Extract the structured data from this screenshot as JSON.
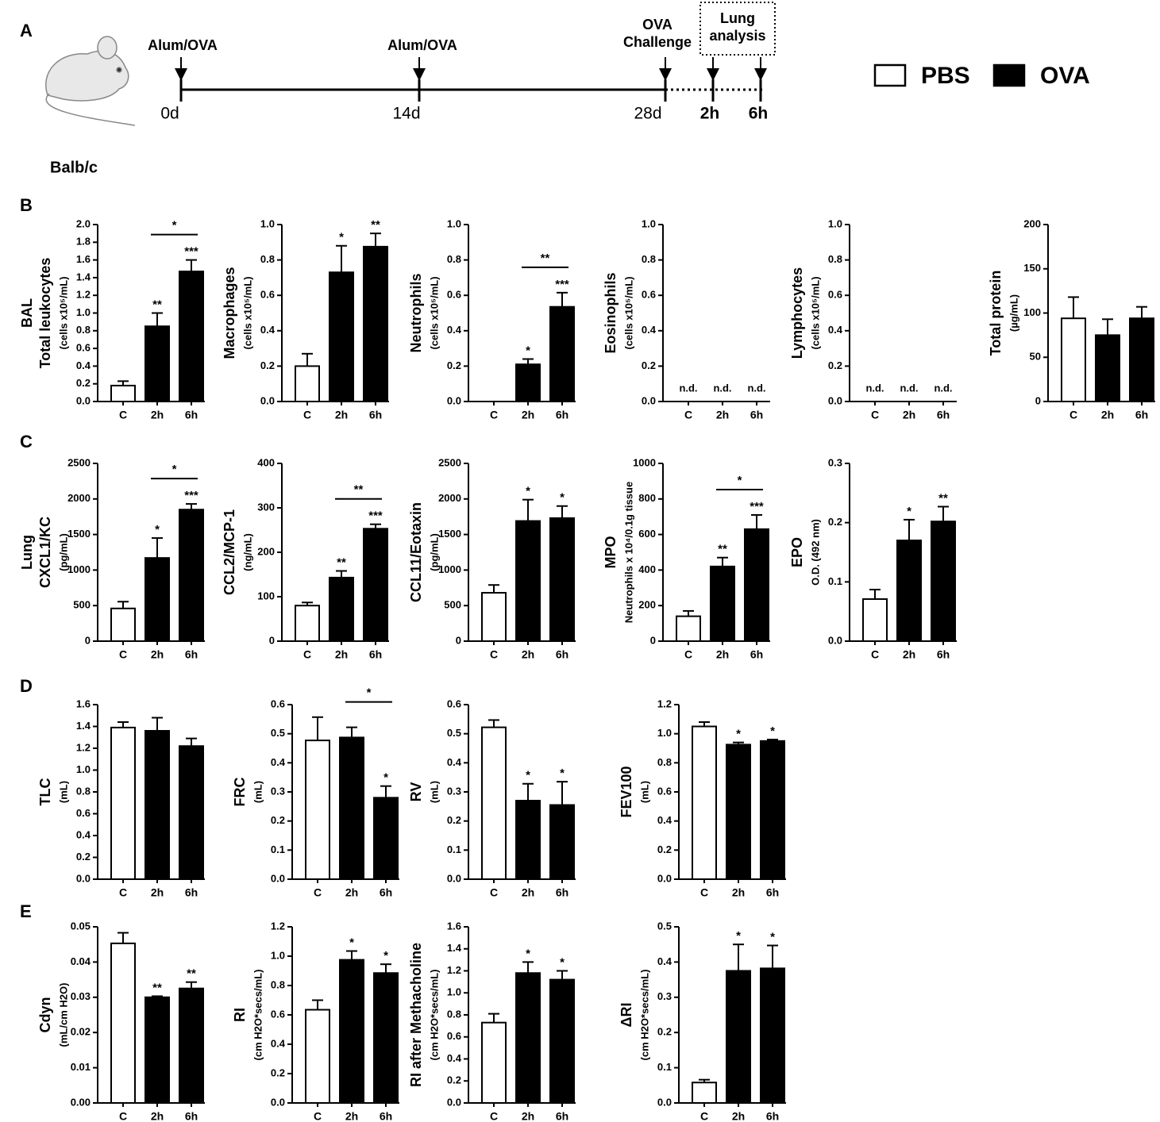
{
  "panel_labels": [
    "A",
    "B",
    "C",
    "D",
    "E"
  ],
  "timeline": {
    "strain": "Balb/c",
    "sensitization": [
      "Alum/OVA",
      "Alum/OVA"
    ],
    "challenge": [
      "OVA",
      "Challenge"
    ],
    "analysis": [
      "Lung",
      "analysis"
    ],
    "days": [
      "0d",
      "14d",
      "28d"
    ],
    "hours": [
      "2h",
      "6h"
    ]
  },
  "legend": [
    {
      "name": "PBS",
      "color": "#ffffff"
    },
    {
      "name": "OVA",
      "color": "#000000"
    }
  ],
  "chart_data": [
    {
      "type": "bar",
      "ylabel": [
        "BAL",
        "Total leukocytes",
        "(cells x10⁵/mL)"
      ],
      "categories": [
        "C",
        "2h",
        "6h"
      ],
      "values": [
        0.18,
        0.85,
        1.47
      ],
      "errors": [
        0.05,
        0.15,
        0.13
      ],
      "colors": [
        "#ffffff",
        "#000000",
        "#000000"
      ],
      "stars": [
        null,
        "**",
        "***"
      ],
      "brackets": [
        {
          "from": "2h",
          "to": "6h",
          "text": "*"
        }
      ],
      "ylim": [
        0,
        2
      ],
      "yticks": [
        {
          "value": 0,
          "label": "0.0"
        },
        0.2,
        0.4,
        0.6,
        0.8,
        {
          "value": 1,
          "label": "1.0"
        },
        1.2,
        1.4,
        1.6,
        1.8,
        {
          "value": 2,
          "label": "2.0"
        }
      ]
    },
    {
      "type": "bar",
      "ylabel": [
        "Macrophages",
        "(cells x10⁵/mL)"
      ],
      "categories": [
        "C",
        "2h",
        "6h"
      ],
      "values": [
        0.2,
        0.73,
        0.875
      ],
      "errors": [
        0.07,
        0.15,
        0.075
      ],
      "colors": [
        "#ffffff",
        "#000000",
        "#000000"
      ],
      "stars": [
        null,
        "*",
        "**"
      ],
      "ylim": [
        0,
        1
      ],
      "yticks": [
        {
          "value": 0,
          "label": "0.0"
        },
        0.2,
        0.4,
        0.6,
        0.8,
        {
          "value": 1,
          "label": "1.0"
        }
      ]
    },
    {
      "type": "bar",
      "ylabel": [
        "Neutrophils",
        "(cells x10⁵/mL)"
      ],
      "categories": [
        "C",
        "2h",
        "6h"
      ],
      "values": [
        0,
        0.21,
        0.535
      ],
      "errors": [
        null,
        0.03,
        0.08
      ],
      "colors": [
        "#ffffff",
        "#000000",
        "#000000"
      ],
      "stars": [
        null,
        "*",
        "***"
      ],
      "brackets": [
        {
          "from": "2h",
          "to": "6h",
          "text": "**"
        }
      ],
      "ylim": [
        0,
        1
      ],
      "yticks": [
        {
          "value": 0,
          "label": "0.0"
        },
        0.2,
        0.4,
        0.6,
        0.8,
        {
          "value": 1,
          "label": "1.0"
        }
      ]
    },
    {
      "type": "bar",
      "ylabel": [
        "Eosinophils",
        "(cells x10⁵/mL)"
      ],
      "categories": [
        "C",
        "2h",
        "6h"
      ],
      "values": [
        null,
        null,
        null
      ],
      "labels": [
        "n.d.",
        "n.d.",
        "n.d."
      ],
      "ylim": [
        0,
        1
      ],
      "yticks": [
        {
          "value": 0,
          "label": "0.0"
        },
        0.2,
        0.4,
        0.6,
        0.8,
        {
          "value": 1,
          "label": "1.0"
        }
      ]
    },
    {
      "type": "bar",
      "ylabel": [
        "Lymphocytes",
        "(cells x10⁵/mL)"
      ],
      "categories": [
        "C",
        "2h",
        "6h"
      ],
      "values": [
        null,
        null,
        null
      ],
      "labels": [
        "n.d.",
        "n.d.",
        "n.d."
      ],
      "ylim": [
        0,
        1
      ],
      "yticks": [
        {
          "value": 0,
          "label": "0.0"
        },
        0.2,
        0.4,
        0.6,
        0.8,
        {
          "value": 1,
          "label": "1.0"
        }
      ]
    },
    {
      "type": "bar",
      "ylabel": [
        "Total protein",
        "(µg/mL)"
      ],
      "categories": [
        "C",
        "2h",
        "6h"
      ],
      "values": [
        94,
        75,
        94
      ],
      "errors": [
        24,
        18,
        13
      ],
      "colors": [
        "#ffffff",
        "#000000",
        "#000000"
      ],
      "ylim": [
        0,
        200
      ],
      "yticks": [
        0,
        50,
        100,
        150,
        200
      ]
    },
    {
      "type": "bar",
      "ylabel": [
        "Lung",
        "CXCL1/KC",
        "(pg/mL)"
      ],
      "categories": [
        "C",
        "2h",
        "6h"
      ],
      "values": [
        460,
        1170,
        1850
      ],
      "errors": [
        95,
        280,
        80
      ],
      "colors": [
        "#ffffff",
        "#000000",
        "#000000"
      ],
      "stars": [
        null,
        "*",
        "***"
      ],
      "brackets": [
        {
          "from": "2h",
          "to": "6h",
          "text": "*"
        }
      ],
      "ylim": [
        0,
        2500
      ],
      "yticks": [
        0,
        500,
        1000,
        1500,
        2000,
        2500
      ]
    },
    {
      "type": "bar",
      "ylabel": [
        "CCL2/MCP-1",
        "(ng/mL)"
      ],
      "categories": [
        "C",
        "2h",
        "6h"
      ],
      "values": [
        80,
        143,
        253
      ],
      "errors": [
        7,
        15,
        10
      ],
      "colors": [
        "#ffffff",
        "#000000",
        "#000000"
      ],
      "stars": [
        null,
        "**",
        "***"
      ],
      "brackets": [
        {
          "from": "2h",
          "to": "6h",
          "text": "**"
        }
      ],
      "ylim": [
        0,
        400
      ],
      "yticks": [
        0,
        100,
        200,
        300,
        400
      ]
    },
    {
      "type": "bar",
      "ylabel": [
        "CCL11/Eotaxin",
        "(pg/mL)"
      ],
      "categories": [
        "C",
        "2h",
        "6h"
      ],
      "values": [
        680,
        1690,
        1730
      ],
      "errors": [
        110,
        300,
        170
      ],
      "colors": [
        "#ffffff",
        "#000000",
        "#000000"
      ],
      "stars": [
        null,
        "*",
        "*"
      ],
      "ylim": [
        0,
        2500
      ],
      "yticks": [
        0,
        500,
        1000,
        1500,
        2000,
        2500
      ]
    },
    {
      "type": "bar",
      "ylabel": [
        "MPO",
        "Neutrophils x 10⁴/0.1g tissue"
      ],
      "categories": [
        "C",
        "2h",
        "6h"
      ],
      "values": [
        140,
        420,
        630
      ],
      "errors": [
        30,
        50,
        80
      ],
      "colors": [
        "#ffffff",
        "#000000",
        "#000000"
      ],
      "stars": [
        null,
        "**",
        "***"
      ],
      "brackets": [
        {
          "from": "2h",
          "to": "6h",
          "text": "*"
        }
      ],
      "ylim": [
        0,
        1000
      ],
      "yticks": [
        0,
        200,
        400,
        600,
        800,
        1000
      ]
    },
    {
      "type": "bar",
      "ylabel": [
        "EPO",
        "O.D. (492 nm)"
      ],
      "categories": [
        "C",
        "2h",
        "6h"
      ],
      "values": [
        0.071,
        0.17,
        0.202
      ],
      "errors": [
        0.016,
        0.035,
        0.025
      ],
      "colors": [
        "#ffffff",
        "#000000",
        "#000000"
      ],
      "stars": [
        null,
        "*",
        "**"
      ],
      "ylim": [
        0,
        0.3
      ],
      "yticks": [
        {
          "value": 0,
          "label": "0.0"
        },
        0.1,
        0.2,
        0.3
      ]
    },
    {
      "type": "bar",
      "ylabel": [
        "TLC",
        "(mL)"
      ],
      "categories": [
        "C",
        "2h",
        "6h"
      ],
      "values": [
        1.39,
        1.36,
        1.22
      ],
      "errors": [
        0.05,
        0.12,
        0.07
      ],
      "colors": [
        "#ffffff",
        "#000000",
        "#000000"
      ],
      "ylim": [
        0,
        1.6
      ],
      "yticks": [
        {
          "value": 0,
          "label": "0.0"
        },
        0.2,
        0.4,
        0.6,
        0.8,
        {
          "value": 1,
          "label": "1.0"
        },
        1.2,
        1.4,
        1.6
      ]
    },
    {
      "type": "bar",
      "ylabel": [
        "FRC",
        "(mL)"
      ],
      "categories": [
        "C",
        "2h",
        "6h"
      ],
      "values": [
        0.477,
        0.487,
        0.28
      ],
      "errors": [
        0.08,
        0.035,
        0.04
      ],
      "colors": [
        "#ffffff",
        "#000000",
        "#000000"
      ],
      "stars": [
        null,
        null,
        "*"
      ],
      "brackets": [
        {
          "from": "2h",
          "to": "6h",
          "text": "*"
        }
      ],
      "ylim": [
        0,
        0.6
      ],
      "yticks": [
        {
          "value": 0,
          "label": "0.0"
        },
        0.1,
        0.2,
        0.3,
        0.4,
        0.5,
        0.6
      ]
    },
    {
      "type": "bar",
      "ylabel": [
        "RV",
        "(mL)"
      ],
      "categories": [
        "C",
        "2h",
        "6h"
      ],
      "values": [
        0.522,
        0.27,
        0.255
      ],
      "errors": [
        0.025,
        0.058,
        0.08
      ],
      "colors": [
        "#ffffff",
        "#000000",
        "#000000"
      ],
      "stars": [
        null,
        "*",
        "*"
      ],
      "ylim": [
        0,
        0.6
      ],
      "yticks": [
        {
          "value": 0,
          "label": "0.0"
        },
        0.1,
        0.2,
        0.3,
        0.4,
        0.5,
        0.6
      ]
    },
    {
      "type": "bar",
      "ylabel": [
        "FEV100",
        "(mL)"
      ],
      "categories": [
        "C",
        "2h",
        "6h"
      ],
      "values": [
        1.05,
        0.925,
        0.95
      ],
      "errors": [
        0.03,
        0.015,
        0.01
      ],
      "colors": [
        "#ffffff",
        "#000000",
        "#000000"
      ],
      "stars": [
        null,
        "*",
        "*"
      ],
      "ylim": [
        0,
        1.2
      ],
      "yticks": [
        {
          "value": 0,
          "label": "0.0"
        },
        0.2,
        0.4,
        0.6,
        0.8,
        {
          "value": 1,
          "label": "1.0"
        },
        1.2
      ]
    },
    {
      "type": "bar",
      "ylabel": [
        "Cdyn",
        "(mL/cm H2O)"
      ],
      "categories": [
        "C",
        "2h",
        "6h"
      ],
      "values": [
        0.0453,
        0.03,
        0.0325
      ],
      "errors": [
        0.003,
        0.0003,
        0.0018
      ],
      "colors": [
        "#ffffff",
        "#000000",
        "#000000"
      ],
      "stars": [
        null,
        "**",
        "**"
      ],
      "ylim": [
        0,
        0.05
      ],
      "yticks": [
        {
          "value": 0,
          "label": "0.00"
        },
        0.01,
        0.02,
        0.03,
        0.04,
        0.05
      ]
    },
    {
      "type": "bar",
      "ylabel": [
        "RI",
        "(cm H2O*secs/mL)"
      ],
      "categories": [
        "C",
        "2h",
        "6h"
      ],
      "values": [
        0.635,
        0.975,
        0.885
      ],
      "errors": [
        0.065,
        0.06,
        0.06
      ],
      "colors": [
        "#ffffff",
        "#000000",
        "#000000"
      ],
      "stars": [
        null,
        "*",
        "*"
      ],
      "ylim": [
        0,
        1.2
      ],
      "yticks": [
        {
          "value": 0,
          "label": "0.0"
        },
        0.2,
        0.4,
        0.6,
        0.8,
        {
          "value": 1,
          "label": "1.0"
        },
        1.2
      ]
    },
    {
      "type": "bar",
      "ylabel": [
        "RI after Methacholine",
        "(cm H2O*secs/mL)"
      ],
      "categories": [
        "C",
        "2h",
        "6h"
      ],
      "values": [
        0.73,
        1.18,
        1.12
      ],
      "errors": [
        0.08,
        0.1,
        0.08
      ],
      "colors": [
        "#ffffff",
        "#000000",
        "#000000"
      ],
      "stars": [
        null,
        "*",
        "*"
      ],
      "ylim": [
        0,
        1.6
      ],
      "yticks": [
        {
          "value": 0,
          "label": "0.0"
        },
        0.2,
        0.4,
        0.6,
        0.8,
        {
          "value": 1,
          "label": "1.0"
        },
        1.2,
        1.4,
        1.6
      ]
    },
    {
      "type": "bar",
      "ylabel": [
        "ΔRI",
        "(cm H2O*secs/mL)"
      ],
      "categories": [
        "C",
        "2h",
        "6h"
      ],
      "values": [
        0.058,
        0.375,
        0.382
      ],
      "errors": [
        0.008,
        0.075,
        0.065
      ],
      "colors": [
        "#ffffff",
        "#000000",
        "#000000"
      ],
      "stars": [
        null,
        "*",
        "*"
      ],
      "ylim": [
        0,
        0.5
      ],
      "yticks": [
        {
          "value": 0,
          "label": "0.0"
        },
        0.1,
        0.2,
        0.3,
        0.4,
        0.5
      ]
    }
  ]
}
